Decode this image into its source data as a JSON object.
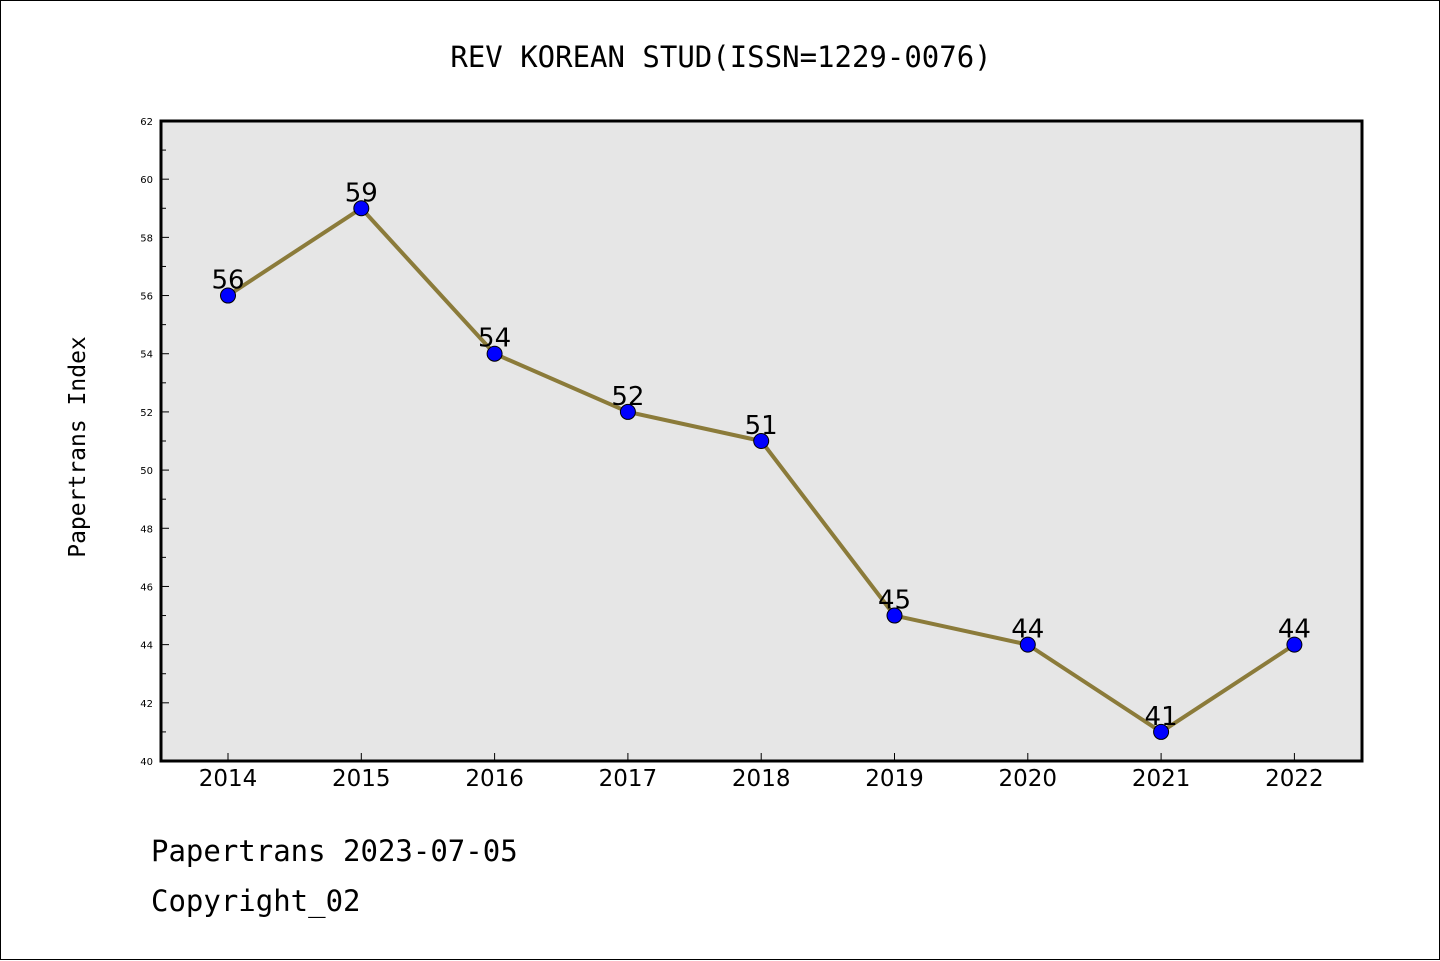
{
  "chart_data": {
    "type": "line",
    "title": "REV KOREAN STUD(ISSN=1229-0076)",
    "xlabel": "",
    "ylabel": "Papertrans Index",
    "categories": [
      "2014",
      "2015",
      "2016",
      "2017",
      "2018",
      "2019",
      "2020",
      "2021",
      "2022"
    ],
    "values": [
      56,
      59,
      54,
      52,
      51,
      45,
      44,
      41,
      44
    ],
    "data_labels": [
      "56",
      "59",
      "54",
      "52",
      "51",
      "45",
      "44",
      "41",
      "44"
    ],
    "ylim": [
      40,
      62
    ],
    "y_ticks": [
      "40",
      "42",
      "44",
      "46",
      "48",
      "50",
      "52",
      "54",
      "56",
      "58",
      "60",
      "62"
    ],
    "grid": false,
    "legend": "none",
    "colors": {
      "line": "#8B7B3A",
      "marker": "#0000FF",
      "plot_background": "#E6E6E6"
    }
  },
  "footer": {
    "date_line": "Papertrans 2023-07-05",
    "copyright_line": "Copyright_02"
  }
}
